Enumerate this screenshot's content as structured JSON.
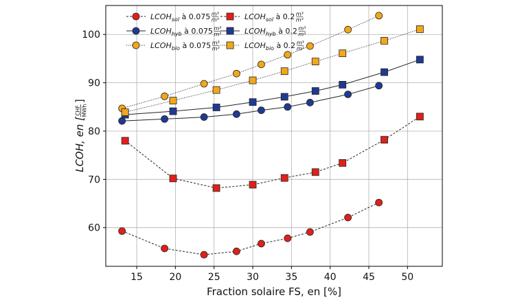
{
  "chart_data": {
    "type": "scatter",
    "xlabel": "Fraction solaire FS, en [%]",
    "ylabel": {
      "prefix": "LCOH, en [",
      "unit_num": "CHF",
      "unit_den": "MWh",
      "suffix": "]"
    },
    "xlim": [
      11,
      54.5
    ],
    "ylim": [
      52,
      106
    ],
    "xticks": [
      15,
      20,
      25,
      30,
      35,
      40,
      45,
      50
    ],
    "yticks": [
      60,
      70,
      80,
      90,
      100
    ],
    "grid": true,
    "legend_position": "top-left, two columns",
    "series": [
      {
        "key": "sol_0075",
        "legend": {
          "base": "LCOH",
          "sub": "sol",
          "text": " à 0.075 ",
          "frac_num": "m³",
          "frac_den": "m²"
        },
        "marker": "circle",
        "line": "dashed",
        "color": "#e0201b",
        "x": [
          13.1,
          18.6,
          23.7,
          27.9,
          31.1,
          34.5,
          37.4,
          42.3,
          46.3
        ],
        "y": [
          59.3,
          55.7,
          54.4,
          55.1,
          56.7,
          57.8,
          59.1,
          62.1,
          65.2
        ]
      },
      {
        "key": "hyb_0075",
        "legend": {
          "base": "LCOH",
          "sub": "hyb",
          "text": " à 0.075 ",
          "frac_num": "m³",
          "frac_den": "m²"
        },
        "marker": "circle",
        "line": "solid",
        "color": "#1f3a93",
        "x": [
          13.1,
          18.6,
          23.7,
          27.9,
          31.1,
          34.5,
          37.4,
          42.3,
          46.3
        ],
        "y": [
          82.1,
          82.5,
          82.9,
          83.5,
          84.3,
          85.0,
          85.9,
          87.6,
          89.4
        ]
      },
      {
        "key": "bio_0075",
        "legend": {
          "base": "LCOH",
          "sub": "bio",
          "text": " à 0.075 ",
          "frac_num": "m³",
          "frac_den": "m²"
        },
        "marker": "circle",
        "line": "dotted",
        "color": "#f2a71b",
        "x": [
          13.1,
          18.6,
          23.7,
          27.9,
          31.1,
          34.5,
          37.4,
          42.3,
          46.3
        ],
        "y": [
          84.7,
          87.2,
          89.8,
          91.9,
          93.8,
          95.8,
          97.6,
          101.0,
          103.9
        ]
      },
      {
        "key": "sol_02",
        "legend": {
          "base": "LCOH",
          "sub": "sol",
          "text": " à 0.2 ",
          "frac_num": "m³",
          "frac_den": "m²"
        },
        "marker": "square",
        "line": "dashed",
        "color": "#e0201b",
        "x": [
          13.5,
          19.7,
          25.3,
          30.0,
          34.1,
          38.1,
          41.6,
          47.0,
          51.6
        ],
        "y": [
          78.0,
          70.2,
          68.2,
          68.9,
          70.3,
          71.5,
          73.4,
          78.2,
          83.0
        ]
      },
      {
        "key": "hyb_02",
        "legend": {
          "base": "LCOH",
          "sub": "hyb",
          "text": " à 0.2 ",
          "frac_num": "m³",
          "frac_den": "m²"
        },
        "marker": "square",
        "line": "solid",
        "color": "#1f3a93",
        "x": [
          13.5,
          19.7,
          25.3,
          30.0,
          34.1,
          38.1,
          41.6,
          47.0,
          51.6
        ],
        "y": [
          83.4,
          84.1,
          84.9,
          86.0,
          87.1,
          88.3,
          89.6,
          92.2,
          94.8
        ]
      },
      {
        "key": "bio_02",
        "legend": {
          "base": "LCOH",
          "sub": "bio",
          "text": " à 0.2 ",
          "frac_num": "m³",
          "frac_den": "m²"
        },
        "marker": "square",
        "line": "dotted",
        "color": "#f2a71b",
        "x": [
          13.5,
          19.7,
          25.3,
          30.0,
          34.1,
          38.1,
          41.6,
          47.0,
          51.6
        ],
        "y": [
          83.9,
          86.3,
          88.5,
          90.5,
          92.4,
          94.4,
          96.1,
          98.7,
          101.1
        ]
      }
    ]
  }
}
